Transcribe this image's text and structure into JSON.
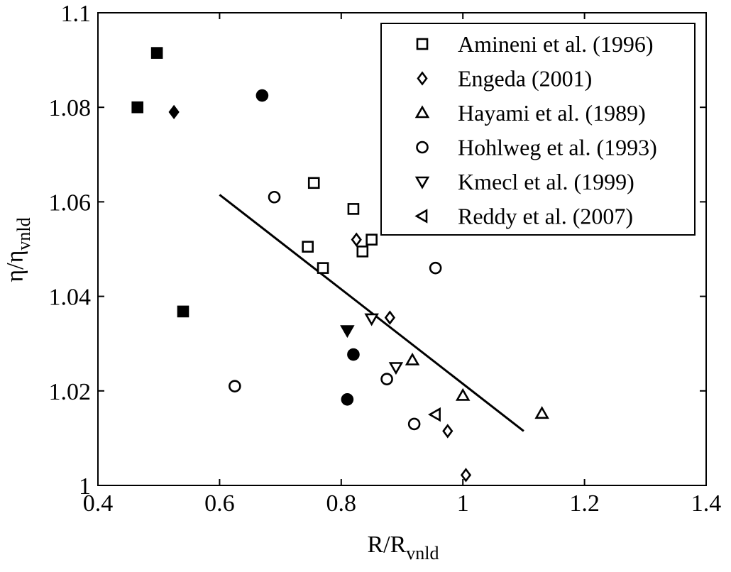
{
  "chart_data": {
    "type": "scatter",
    "title": "",
    "xlabel": {
      "base": "R/R",
      "sub": "vnld"
    },
    "ylabel": {
      "base": "η/η",
      "sub": "vnld"
    },
    "xlim": [
      0.4,
      1.4
    ],
    "ylim": [
      1.0,
      1.1
    ],
    "xticks": [
      0.4,
      0.6,
      0.8,
      1.0,
      1.2,
      1.4
    ],
    "xtick_labels": [
      "0.4",
      "0.6",
      "0.8",
      "1",
      "1.2",
      "1.4"
    ],
    "yticks": [
      1.0,
      1.02,
      1.04,
      1.06,
      1.08,
      1.1
    ],
    "ytick_labels": [
      "1",
      "1.02",
      "1.04",
      "1.06",
      "1.08",
      "1.1"
    ],
    "grid": false,
    "legend_position": "top-right",
    "series": [
      {
        "name": "Amineni et al. (1996)",
        "marker": "square",
        "points": [
          {
            "x": 0.755,
            "y": 1.064,
            "filled": false
          },
          {
            "x": 0.82,
            "y": 1.0585,
            "filled": false
          },
          {
            "x": 0.745,
            "y": 1.0505,
            "filled": false
          },
          {
            "x": 0.85,
            "y": 1.052,
            "filled": false
          },
          {
            "x": 0.835,
            "y": 1.0495,
            "filled": false
          },
          {
            "x": 0.77,
            "y": 1.046,
            "filled": false
          },
          {
            "x": 0.465,
            "y": 1.08,
            "filled": true
          },
          {
            "x": 0.497,
            "y": 1.0915,
            "filled": true
          },
          {
            "x": 0.54,
            "y": 1.0368,
            "filled": true
          }
        ]
      },
      {
        "name": "Engeda (2001)",
        "marker": "diamond",
        "points": [
          {
            "x": 0.825,
            "y": 1.052,
            "filled": false
          },
          {
            "x": 0.88,
            "y": 1.0355,
            "filled": false
          },
          {
            "x": 0.975,
            "y": 1.0115,
            "filled": false
          },
          {
            "x": 1.005,
            "y": 1.0022,
            "filled": false
          },
          {
            "x": 0.525,
            "y": 1.079,
            "filled": true
          }
        ]
      },
      {
        "name": "Hayami et al. (1989)",
        "marker": "triangle-up",
        "points": [
          {
            "x": 0.917,
            "y": 1.0265,
            "filled": false
          },
          {
            "x": 1.0,
            "y": 1.019,
            "filled": false
          },
          {
            "x": 1.13,
            "y": 1.0152,
            "filled": false
          }
        ]
      },
      {
        "name": "Hohlweg et al. (1993)",
        "marker": "circle",
        "points": [
          {
            "x": 0.69,
            "y": 1.061,
            "filled": false
          },
          {
            "x": 0.955,
            "y": 1.046,
            "filled": false
          },
          {
            "x": 0.625,
            "y": 1.021,
            "filled": false
          },
          {
            "x": 0.875,
            "y": 1.0225,
            "filled": false
          },
          {
            "x": 0.92,
            "y": 1.013,
            "filled": false
          },
          {
            "x": 0.67,
            "y": 1.0825,
            "filled": true
          },
          {
            "x": 0.82,
            "y": 1.0277,
            "filled": true
          },
          {
            "x": 0.81,
            "y": 1.0182,
            "filled": true
          }
        ]
      },
      {
        "name": "Kmecl et al. (1999)",
        "marker": "triangle-down",
        "points": [
          {
            "x": 0.85,
            "y": 1.0353,
            "filled": false
          },
          {
            "x": 0.89,
            "y": 1.025,
            "filled": false
          },
          {
            "x": 0.81,
            "y": 1.0328,
            "filled": true
          }
        ]
      },
      {
        "name": "Reddy et al. (2007)",
        "marker": "triangle-left",
        "points": [
          {
            "x": 0.955,
            "y": 1.015,
            "filled": false
          }
        ]
      }
    ],
    "fit_line": {
      "x": [
        0.6,
        1.1
      ],
      "y": [
        1.0615,
        1.0115
      ]
    }
  }
}
